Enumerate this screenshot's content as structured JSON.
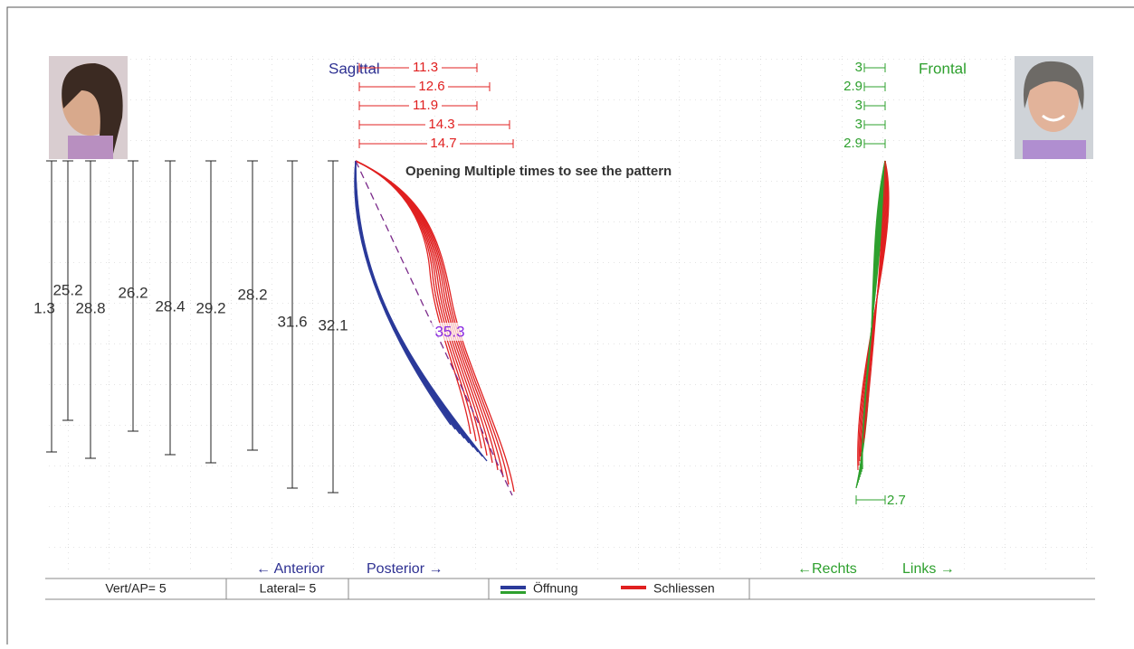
{
  "sagittal": {
    "title": "Sagittal",
    "horizontal": [
      11.3,
      12.6,
      11.9,
      14.3,
      14.7
    ],
    "vertical": [
      "1.3",
      "25.2",
      "28.8",
      "26.2",
      "28.4",
      "29.2",
      "28.2",
      "31.6",
      "32.1"
    ],
    "diagonal": 35.3,
    "left_label": "← Anterior",
    "right_label": "Posterior →"
  },
  "frontal": {
    "title": "Frontal",
    "horizontal": [
      3.0,
      2.9,
      3.0,
      3.0,
      2.9
    ],
    "bottom": 2.7,
    "left_label": "←Rechts",
    "right_label": "Links →"
  },
  "annotation": "Opening Multiple times to see the pattern",
  "status": {
    "vert_ap": "Vert/AP= 5",
    "lateral": "Lateral= 5",
    "legend": [
      {
        "name": "Öffnung",
        "color": "#2b3a9a"
      },
      {
        "name": "Schliessen",
        "color": "#e02020"
      }
    ]
  }
}
